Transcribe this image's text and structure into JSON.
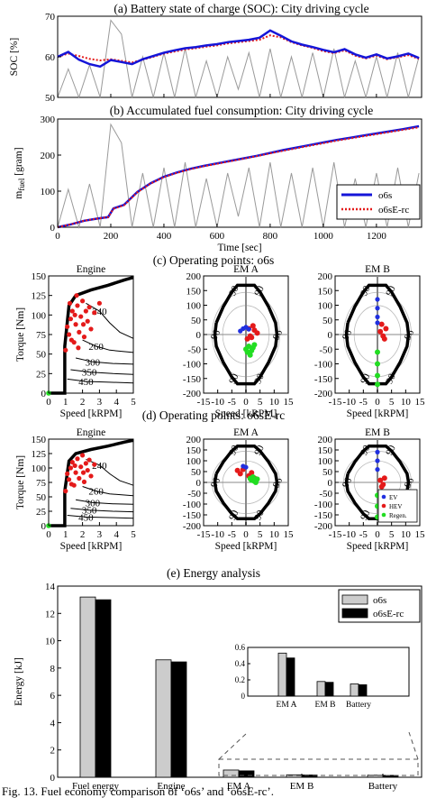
{
  "figure": {
    "caption": "Fig. 13.   Fuel economy comparison of ‘o6s’ and ‘o6sE-rc’."
  },
  "colors": {
    "o6s": "#1515d8",
    "o6sE_rc": "#e41a1a",
    "speed_trace": "#9a9a9a",
    "engine_points": "#e41a1a",
    "ev_points": "#2030e0",
    "hev_points": "#e41a1a",
    "regen_points": "#22dd22",
    "bar_o6s": "#cccccc",
    "bar_o6sE_rc": "#000000"
  },
  "chart_data": [
    {
      "id": "soc",
      "type": "line",
      "title": "(a) Battery state of charge (SOC): City driving cycle",
      "xlabel": "",
      "ylabel": "SOC [%]",
      "xlim": [
        0,
        1370
      ],
      "ylim": [
        50,
        70
      ],
      "yticks": [
        50,
        60,
        70
      ],
      "x": [
        0,
        40,
        80,
        120,
        160,
        200,
        240,
        280,
        320,
        360,
        400,
        440,
        480,
        520,
        560,
        600,
        640,
        680,
        720,
        760,
        800,
        840,
        880,
        920,
        960,
        1000,
        1040,
        1080,
        1120,
        1160,
        1200,
        1240,
        1280,
        1320,
        1360
      ],
      "series": [
        {
          "name": "o6s",
          "values": [
            60,
            61.2,
            59.3,
            58.2,
            57.6,
            59.2,
            58.7,
            58.2,
            59.4,
            60.2,
            61.0,
            61.6,
            62.1,
            62.4,
            62.8,
            63.1,
            63.6,
            63.9,
            64.2,
            64.7,
            66.5,
            65.2,
            63.8,
            63.0,
            62.4,
            61.7,
            61.1,
            61.9,
            60.6,
            59.8,
            60.6,
            59.6,
            60.1,
            60.8,
            59.7
          ]
        },
        {
          "name": "o6sE-rc",
          "values": [
            60,
            60.8,
            60.2,
            59.5,
            59.1,
            59.4,
            59.0,
            58.6,
            59.3,
            60.0,
            60.8,
            61.3,
            61.8,
            62.1,
            62.5,
            62.8,
            63.3,
            63.6,
            63.9,
            64.2,
            65.3,
            64.8,
            63.6,
            62.8,
            62.2,
            61.4,
            60.9,
            61.6,
            60.3,
            59.6,
            60.3,
            59.4,
            59.9,
            60.4,
            59.5
          ]
        }
      ],
      "speed_trace_profile": [
        0,
        0.35,
        0.0,
        0.4,
        0.0,
        0.95,
        0.78,
        0.0,
        0.5,
        0.0,
        0.55,
        0.0,
        0.6,
        0.0,
        0.45,
        0.0,
        0.5,
        0.1,
        0.55,
        0.0,
        0.6,
        0.0,
        0.5,
        0.0,
        0.55,
        0.0,
        0.6,
        0.0,
        0.45,
        0.0,
        0.5,
        0.0,
        0.55,
        0.0,
        0.5
      ]
    },
    {
      "id": "fuel",
      "type": "line",
      "title": "(b) Accumulated fuel consumption: City driving cycle",
      "xlabel": "Time [sec]",
      "ylabel": "m_fuel [gram]",
      "ylabel_main": "m",
      "ylabel_sub": "fuel",
      "ylabel_unit": " [gram]",
      "xlim": [
        0,
        1370
      ],
      "ylim": [
        0,
        300
      ],
      "xticks": [
        0,
        200,
        400,
        600,
        800,
        1000,
        1200
      ],
      "yticks": [
        0,
        100,
        200,
        300
      ],
      "x": [
        0,
        50,
        100,
        150,
        190,
        210,
        250,
        300,
        350,
        400,
        450,
        500,
        550,
        600,
        650,
        700,
        750,
        800,
        850,
        900,
        950,
        1000,
        1050,
        1100,
        1150,
        1200,
        1250,
        1300,
        1360
      ],
      "series": [
        {
          "name": "o6s",
          "values": [
            0,
            8,
            18,
            24,
            28,
            52,
            62,
            98,
            122,
            140,
            152,
            162,
            170,
            177,
            184,
            191,
            198,
            206,
            214,
            221,
            228,
            235,
            242,
            248,
            254,
            260,
            266,
            272,
            280
          ]
        },
        {
          "name": "o6sE-rc",
          "values": [
            0,
            8,
            18,
            24,
            28,
            51,
            61,
            97,
            121,
            139,
            151,
            161,
            169,
            176,
            183,
            190,
            197,
            205,
            212,
            219,
            226,
            233,
            240,
            246,
            252,
            258,
            264,
            270,
            277
          ]
        }
      ],
      "legend": [
        "o6s",
        "o6sE-rc"
      ],
      "legend_position": "right"
    },
    {
      "id": "op-o6s",
      "type": "scatter",
      "group_title": "(c) Operating points: o6s",
      "panels": [
        {
          "title": "Engine",
          "xlabel": "Speed [kRPM]",
          "ylabel": "Torque [Nm]",
          "xlim": [
            0,
            5
          ],
          "ylim": [
            0,
            150
          ],
          "xticks": [
            0,
            1,
            2,
            3,
            4,
            5
          ],
          "yticks": [
            0,
            25,
            50,
            75,
            100,
            125,
            150
          ],
          "contour_labels": [
            "240",
            "260",
            "300",
            "350",
            "450"
          ],
          "points": [
            {
              "x": 1.0,
              "y": 55
            },
            {
              "x": 1.2,
              "y": 75
            },
            {
              "x": 1.3,
              "y": 95
            },
            {
              "x": 1.4,
              "y": 105
            },
            {
              "x": 1.5,
              "y": 65
            },
            {
              "x": 1.6,
              "y": 88
            },
            {
              "x": 1.7,
              "y": 112
            },
            {
              "x": 1.8,
              "y": 78
            },
            {
              "x": 1.9,
              "y": 98
            },
            {
              "x": 2.0,
              "y": 118
            },
            {
              "x": 2.1,
              "y": 72
            },
            {
              "x": 2.2,
              "y": 105
            },
            {
              "x": 2.3,
              "y": 92
            },
            {
              "x": 2.5,
              "y": 82
            },
            {
              "x": 2.7,
              "y": 103
            },
            {
              "x": 3.0,
              "y": 115
            },
            {
              "x": 1.1,
              "y": 85
            },
            {
              "x": 1.35,
              "y": 68
            },
            {
              "x": 1.55,
              "y": 100
            },
            {
              "x": 1.75,
              "y": 58
            },
            {
              "x": 2.05,
              "y": 88
            },
            {
              "x": 2.4,
              "y": 110
            },
            {
              "x": 1.25,
              "y": 115
            },
            {
              "x": 1.65,
              "y": 125
            }
          ]
        },
        {
          "title": "EM A",
          "xlabel": "Speed [kRPM]",
          "ylabel": "",
          "xlim": [
            -15,
            15
          ],
          "ylim": [
            -200,
            200
          ],
          "xticks": [
            -15,
            -10,
            -5,
            0,
            5,
            10,
            15
          ],
          "yticks": [
            -200,
            -150,
            -100,
            -50,
            0,
            50,
            100,
            150,
            200
          ],
          "contour_labels": [
            "90",
            "90",
            "90",
            "90",
            "96",
            "96"
          ],
          "hev_points": [
            {
              "x": 1,
              "y": 20
            },
            {
              "x": 2,
              "y": -10
            },
            {
              "x": 3,
              "y": 15
            },
            {
              "x": 1.5,
              "y": -5
            },
            {
              "x": 4,
              "y": 5
            },
            {
              "x": 2.5,
              "y": 30
            },
            {
              "x": 0.5,
              "y": -15
            }
          ],
          "ev_points": [
            {
              "x": -1,
              "y": 20
            },
            {
              "x": -2,
              "y": 12
            },
            {
              "x": 0,
              "y": 25
            },
            {
              "x": 1,
              "y": 18
            }
          ],
          "regen_points": [
            {
              "x": 1,
              "y": -40
            },
            {
              "x": 2,
              "y": -55
            },
            {
              "x": 3,
              "y": -35
            },
            {
              "x": 0.5,
              "y": -60
            },
            {
              "x": 1.5,
              "y": -70
            },
            {
              "x": 2.5,
              "y": -45
            },
            {
              "x": 0,
              "y": -50
            }
          ]
        },
        {
          "title": "EM B",
          "xlabel": "Speed [kRPM]",
          "ylabel": "",
          "xlim": [
            -15,
            15
          ],
          "ylim": [
            -200,
            200
          ],
          "xticks": [
            -15,
            -10,
            -5,
            0,
            5,
            10,
            15
          ],
          "yticks": [
            -200,
            -150,
            -100,
            -50,
            0,
            50,
            100,
            150,
            200
          ],
          "contour_labels": [
            "90",
            "90",
            "90",
            "90",
            "96",
            "96"
          ],
          "hev_points": [
            {
              "x": 1,
              "y": 10
            },
            {
              "x": 2,
              "y": -5
            },
            {
              "x": 3,
              "y": 20
            },
            {
              "x": 1.5,
              "y": 35
            },
            {
              "x": 2.5,
              "y": -15
            }
          ],
          "ev_points": [
            {
              "x": 0,
              "y": 60
            },
            {
              "x": 0,
              "y": 90
            },
            {
              "x": 0,
              "y": 120
            },
            {
              "x": 0,
              "y": 40
            }
          ],
          "regen_points": [
            {
              "x": 0,
              "y": -60
            },
            {
              "x": 0,
              "y": -100
            },
            {
              "x": 0,
              "y": -140
            },
            {
              "x": 0,
              "y": -170
            }
          ]
        }
      ]
    },
    {
      "id": "op-o6sE-rc",
      "type": "scatter",
      "group_title": "(d) Operating points: o6sE-rc",
      "panels": [
        {
          "title": "Engine",
          "xlabel": "Speed [kRPM]",
          "ylabel": "Torque [Nm]",
          "xlim": [
            0,
            5
          ],
          "ylim": [
            0,
            150
          ],
          "xticks": [
            0,
            1,
            2,
            3,
            4,
            5
          ],
          "yticks": [
            0,
            25,
            50,
            75,
            100,
            125,
            150
          ],
          "contour_labels": [
            "240",
            "260",
            "300",
            "350",
            "450"
          ],
          "points": [
            {
              "x": 1.0,
              "y": 60
            },
            {
              "x": 1.2,
              "y": 80
            },
            {
              "x": 1.3,
              "y": 100
            },
            {
              "x": 1.4,
              "y": 110
            },
            {
              "x": 1.5,
              "y": 70
            },
            {
              "x": 1.6,
              "y": 92
            },
            {
              "x": 1.7,
              "y": 116
            },
            {
              "x": 1.8,
              "y": 82
            },
            {
              "x": 1.9,
              "y": 102
            },
            {
              "x": 2.0,
              "y": 122
            },
            {
              "x": 2.1,
              "y": 76
            },
            {
              "x": 2.2,
              "y": 108
            },
            {
              "x": 2.3,
              "y": 96
            },
            {
              "x": 2.5,
              "y": 86
            },
            {
              "x": 2.7,
              "y": 106
            },
            {
              "x": 1.1,
              "y": 90
            },
            {
              "x": 1.35,
              "y": 72
            },
            {
              "x": 1.55,
              "y": 104
            },
            {
              "x": 2.05,
              "y": 92
            },
            {
              "x": 2.4,
              "y": 114
            }
          ]
        },
        {
          "title": "EM A",
          "xlabel": "Speed [kRPM]",
          "ylabel": "",
          "xlim": [
            -15,
            15
          ],
          "ylim": [
            -200,
            200
          ],
          "xticks": [
            -15,
            -10,
            -5,
            0,
            5,
            10,
            15
          ],
          "yticks": [
            -200,
            -150,
            -100,
            -50,
            0,
            50,
            100,
            150,
            200
          ],
          "contour_labels": [
            "90",
            "90",
            "90",
            "90",
            "96",
            "96"
          ],
          "hev_points": [
            {
              "x": -3,
              "y": 55
            },
            {
              "x": -2,
              "y": 40
            },
            {
              "x": 1,
              "y": 30
            },
            {
              "x": 2,
              "y": 45
            },
            {
              "x": 3,
              "y": 20
            },
            {
              "x": -1,
              "y": 60
            }
          ],
          "ev_points": [
            {
              "x": 0,
              "y": 70
            },
            {
              "x": -1,
              "y": 75
            }
          ],
          "regen_points": [
            {
              "x": 2,
              "y": 10
            },
            {
              "x": 3,
              "y": 5
            },
            {
              "x": 4,
              "y": 15
            },
            {
              "x": 2.5,
              "y": 25
            },
            {
              "x": 3.5,
              "y": 0
            },
            {
              "x": 1.5,
              "y": 18
            }
          ]
        },
        {
          "title": "EM B",
          "xlabel": "Speed [kRPM]",
          "ylabel": "",
          "xlim": [
            -15,
            15
          ],
          "ylim": [
            -200,
            200
          ],
          "xticks": [
            -15,
            -10,
            -5,
            0,
            5,
            10,
            15
          ],
          "yticks": [
            -200,
            -150,
            -100,
            -50,
            0,
            50,
            100,
            150,
            200
          ],
          "contour_labels": [
            "90",
            "90",
            "90",
            "90",
            "96",
            "96"
          ],
          "hev_points": [
            {
              "x": 1,
              "y": 10
            },
            {
              "x": 2,
              "y": -10
            },
            {
              "x": 2.5,
              "y": 20
            },
            {
              "x": 1.5,
              "y": -20
            }
          ],
          "ev_points": [
            {
              "x": 0,
              "y": 60
            },
            {
              "x": 0,
              "y": 100
            },
            {
              "x": 0,
              "y": 140
            }
          ],
          "regen_points": [
            {
              "x": 0,
              "y": -60
            },
            {
              "x": 0,
              "y": -110
            },
            {
              "x": 0,
              "y": -160
            }
          ],
          "legend": [
            "EV",
            "HEV",
            "Regen."
          ]
        }
      ]
    },
    {
      "id": "energy",
      "type": "bar",
      "title": "(e) Energy analysis",
      "xlabel": "",
      "ylabel": "Energy [kJ]",
      "categories": [
        "Fuel energy",
        "Engine",
        "EM A",
        "EM B",
        "Battery"
      ],
      "series": [
        {
          "name": "o6s",
          "values": [
            13.2,
            8.6,
            0.53,
            0.18,
            0.15
          ]
        },
        {
          "name": "o6sE-rc",
          "values": [
            13.0,
            8.45,
            0.47,
            0.17,
            0.14
          ]
        }
      ],
      "ylim": [
        0,
        14
      ],
      "yticks": [
        0,
        2,
        4,
        6,
        8,
        10,
        12,
        14
      ],
      "legend_position": "top-right",
      "inset": {
        "categories": [
          "EM A",
          "EM B",
          "Battery"
        ],
        "ylim": [
          0,
          0.6
        ],
        "yticks": [
          0,
          0.2,
          0.4,
          0.6
        ]
      }
    }
  ]
}
